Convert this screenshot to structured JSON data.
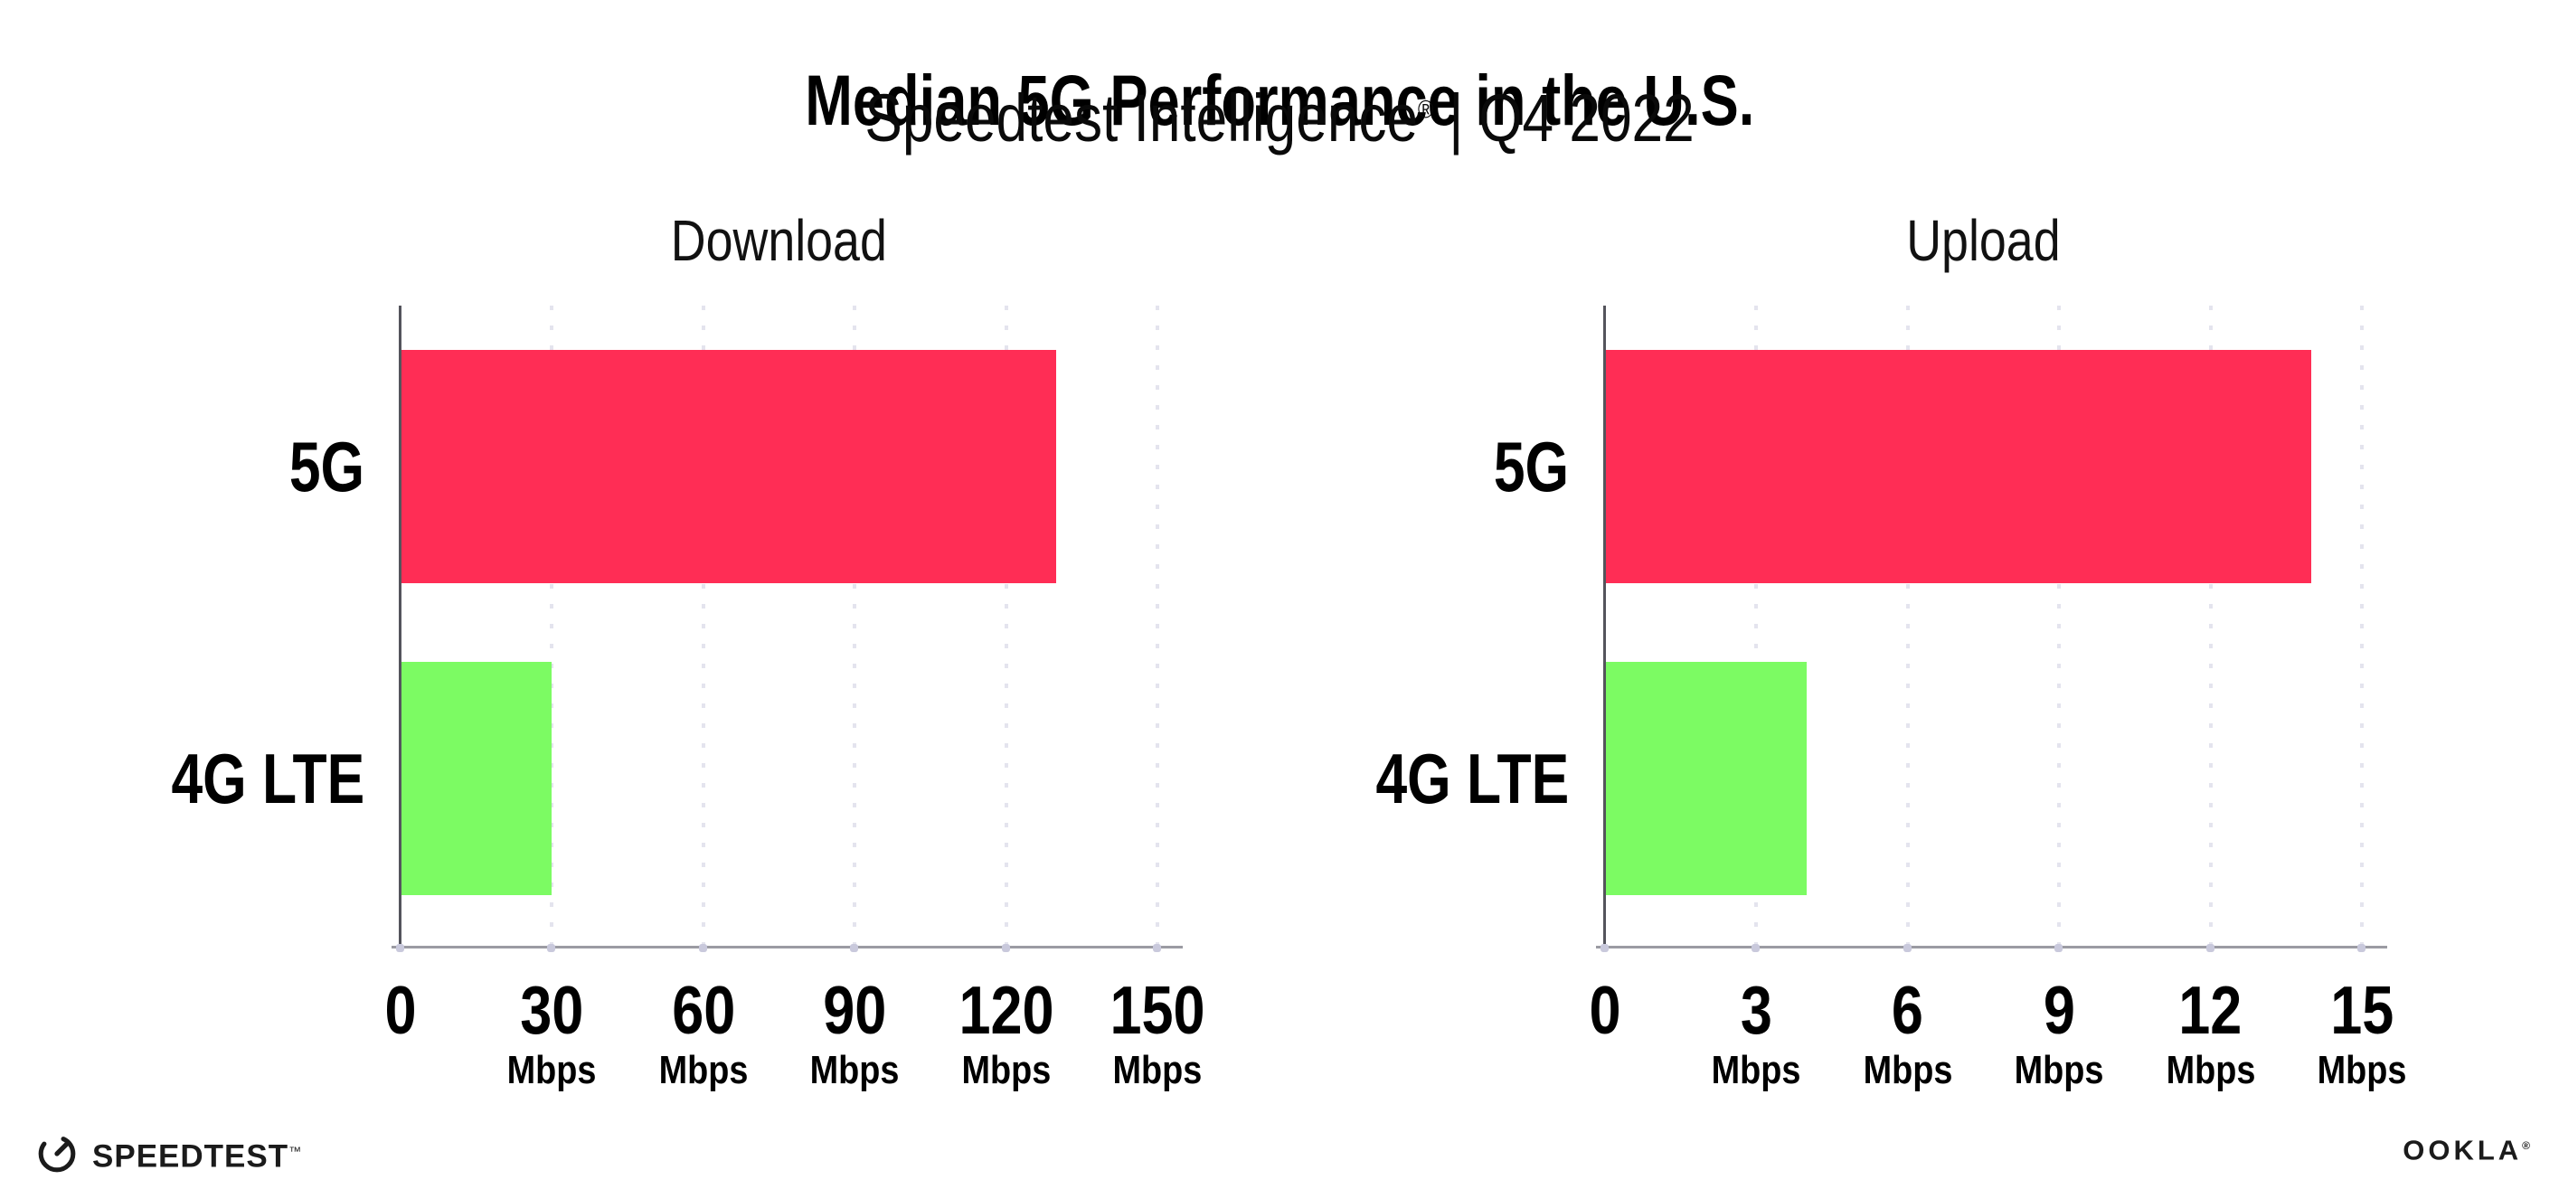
{
  "header": {
    "title": "Median 5G Performance in the U.S.",
    "subtitle_brand": "Speedtest Intelligence",
    "subtitle_reg": "®",
    "subtitle_separator": "|",
    "subtitle_period": "Q4 2022"
  },
  "chart_data": [
    {
      "type": "bar",
      "orientation": "horizontal",
      "title": "Download",
      "categories": [
        "5G",
        "4G LTE"
      ],
      "values": [
        130,
        30
      ],
      "unit": "Mbps",
      "xlim": [
        0,
        150
      ],
      "xticks": [
        0,
        30,
        60,
        90,
        120,
        150
      ],
      "bar_colors": [
        "#FF2D55",
        "#7CFB63"
      ],
      "grid": "dotted-vertical",
      "legend": "none"
    },
    {
      "type": "bar",
      "orientation": "horizontal",
      "title": "Upload",
      "categories": [
        "5G",
        "4G LTE"
      ],
      "values": [
        14,
        4
      ],
      "unit": "Mbps",
      "xlim": [
        0,
        15
      ],
      "xticks": [
        0,
        3,
        6,
        9,
        12,
        15
      ],
      "bar_colors": [
        "#FF2D55",
        "#7CFB63"
      ],
      "grid": "dotted-vertical",
      "legend": "none"
    }
  ],
  "colors": {
    "bar_5g": "#FF2D55",
    "bar_4g_lte": "#7CFB63",
    "gridline": "#E4E4EE",
    "x_axis": "#9B9BA3",
    "y_spine": "#54545C",
    "tick_dot": "#C9C9DC"
  },
  "footer": {
    "speedtest_label": "SPEEDTEST",
    "speedtest_trademark": "™",
    "speedtest_icon": "speedtest-gauge-icon",
    "ookla_label": "OOKLA",
    "ookla_reg": "®"
  }
}
